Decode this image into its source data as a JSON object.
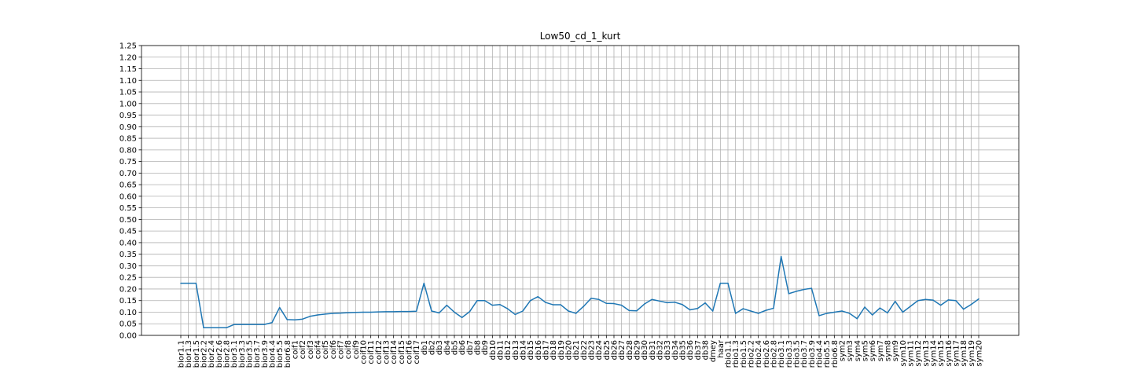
{
  "chart_data": {
    "type": "line",
    "title": "Low50_cd_1_kurt",
    "xlabel": "",
    "ylabel": "",
    "ylim": [
      0,
      1.25
    ],
    "yticks": [
      "0.00",
      "0.05",
      "0.10",
      "0.15",
      "0.20",
      "0.25",
      "0.30",
      "0.35",
      "0.40",
      "0.45",
      "0.50",
      "0.55",
      "0.60",
      "0.65",
      "0.70",
      "0.75",
      "0.80",
      "0.85",
      "0.90",
      "0.95",
      "1.00",
      "1.05",
      "1.10",
      "1.15",
      "1.20",
      "1.25"
    ],
    "grid": true,
    "line_color": "#1f77b4",
    "categories": [
      "bior1.1",
      "bior1.3",
      "bior1.5",
      "bior2.2",
      "bior2.4",
      "bior2.6",
      "bior2.8",
      "bior3.1",
      "bior3.3",
      "bior3.5",
      "bior3.7",
      "bior3.9",
      "bior4.4",
      "bior5.5",
      "bior6.8",
      "coif1",
      "coif2",
      "coif3",
      "coif4",
      "coif5",
      "coif6",
      "coif7",
      "coif8",
      "coif9",
      "coif10",
      "coif11",
      "coif12",
      "coif13",
      "coif14",
      "coif15",
      "coif16",
      "coif17",
      "db1",
      "db2",
      "db3",
      "db4",
      "db5",
      "db6",
      "db7",
      "db8",
      "db9",
      "db10",
      "db11",
      "db12",
      "db13",
      "db14",
      "db15",
      "db16",
      "db17",
      "db18",
      "db19",
      "db20",
      "db21",
      "db22",
      "db23",
      "db24",
      "db25",
      "db26",
      "db27",
      "db28",
      "db29",
      "db30",
      "db31",
      "db32",
      "db33",
      "db34",
      "db35",
      "db36",
      "db37",
      "db38",
      "dmey",
      "haar",
      "rbio1.1",
      "rbio1.3",
      "rbio1.5",
      "rbio2.2",
      "rbio2.4",
      "rbio2.6",
      "rbio2.8",
      "rbio3.1",
      "rbio3.3",
      "rbio3.5",
      "rbio3.7",
      "rbio3.9",
      "rbio4.4",
      "rbio5.5",
      "rbio6.8",
      "sym2",
      "sym3",
      "sym4",
      "sym5",
      "sym6",
      "sym7",
      "sym8",
      "sym9",
      "sym10",
      "sym11",
      "sym12",
      "sym13",
      "sym14",
      "sym15",
      "sym16",
      "sym17",
      "sym18",
      "sym19",
      "sym20"
    ],
    "values": [
      0.225,
      0.225,
      0.225,
      0.033,
      0.033,
      0.033,
      0.033,
      0.047,
      0.047,
      0.047,
      0.047,
      0.047,
      0.055,
      0.12,
      0.068,
      0.067,
      0.07,
      0.082,
      0.088,
      0.092,
      0.095,
      0.096,
      0.098,
      0.099,
      0.1,
      0.1,
      0.101,
      0.102,
      0.102,
      0.103,
      0.103,
      0.104,
      0.225,
      0.105,
      0.097,
      0.13,
      0.1,
      0.077,
      0.102,
      0.15,
      0.15,
      0.13,
      0.133,
      0.115,
      0.09,
      0.105,
      0.15,
      0.167,
      0.142,
      0.132,
      0.132,
      0.105,
      0.095,
      0.125,
      0.16,
      0.155,
      0.138,
      0.137,
      0.13,
      0.107,
      0.106,
      0.135,
      0.155,
      0.148,
      0.141,
      0.143,
      0.133,
      0.11,
      0.116,
      0.14,
      0.105,
      0.225,
      0.225,
      0.095,
      0.115,
      0.105,
      0.095,
      0.108,
      0.117,
      0.34,
      0.18,
      0.19,
      0.198,
      0.203,
      0.085,
      0.095,
      0.1,
      0.105,
      0.095,
      0.072,
      0.122,
      0.088,
      0.118,
      0.097,
      0.147,
      0.1,
      0.125,
      0.15,
      0.155,
      0.152,
      0.13,
      0.153,
      0.15,
      0.113,
      0.133,
      0.157
    ]
  }
}
